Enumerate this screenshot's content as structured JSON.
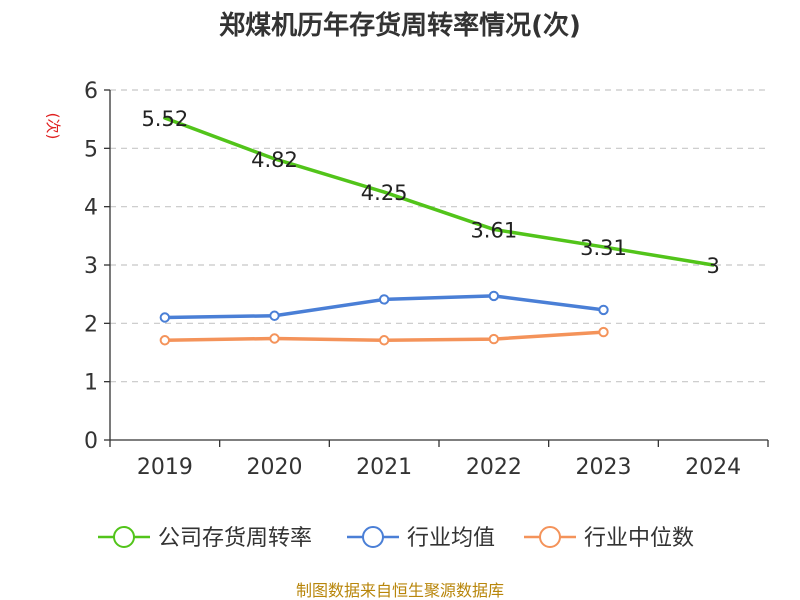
{
  "chart_data": {
    "type": "line",
    "title": "郑煤机历年存货周转率情况(次)",
    "ylabel": "(次)",
    "xlabel": "",
    "categories": [
      "2019",
      "2020",
      "2021",
      "2022",
      "2023",
      "2024"
    ],
    "ylim": [
      0,
      6
    ],
    "yticks": [
      0,
      1,
      2,
      3,
      4,
      5,
      6
    ],
    "grid": true,
    "legend_position": "bottom",
    "series": [
      {
        "name": "公司存货周转率",
        "color": "#52c41a",
        "values": [
          5.52,
          4.82,
          4.25,
          3.61,
          3.31,
          3
        ],
        "labels": [
          "5.52",
          "4.82",
          "4.25",
          "3.61",
          "3.31",
          "3"
        ]
      },
      {
        "name": "行业均值",
        "color": "#4a7fd6",
        "values": [
          2.1,
          2.13,
          2.41,
          2.47,
          2.23,
          null
        ]
      },
      {
        "name": "行业中位数",
        "color": "#f4935a",
        "values": [
          1.71,
          1.74,
          1.71,
          1.73,
          1.85,
          null
        ]
      }
    ]
  },
  "footer": {
    "source": "制图数据来自恒生聚源数据库"
  }
}
